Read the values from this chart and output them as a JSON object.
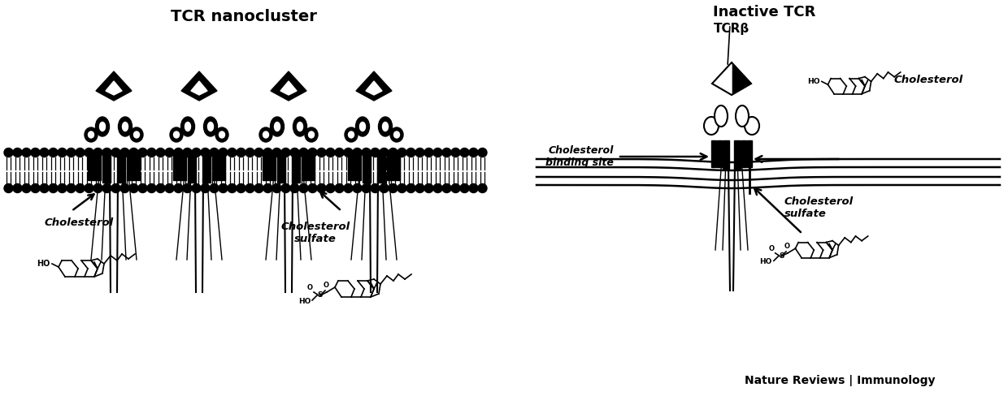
{
  "title_left": "TCR nanocluster",
  "title_right": "Inactive TCR",
  "label_tcrb": "TCRβ",
  "label_cholesterol_binding": "Cholesterol\nbinding site",
  "label_cholesterol": "Cholesterol",
  "label_cholesterol_sulfate_right": "Cholesterol\nsulfate",
  "label_cholesterol_left": "Cholesterol",
  "label_cholesterol_sulfate_left": "Cholesterol\nsulfate",
  "footer": "Nature Reviews | Immunology",
  "bg_color": "#ffffff",
  "ink_color": "#000000",
  "fig_width": 12.4,
  "fig_height": 4.88,
  "dpi": 100
}
